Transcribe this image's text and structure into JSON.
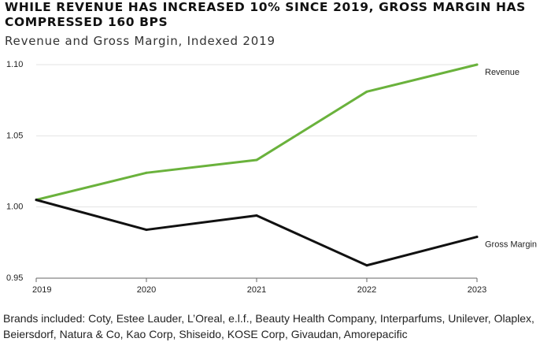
{
  "headline": "WHILE REVENUE HAS INCREASED 10% SINCE 2019, GROSS MARGIN HAS COMPRESSED 160 BPS",
  "footnote": "Brands included: Coty, Estee Lauder, L’Oreal, e.l.f., Beauty Health Company, Interparfums, Unilever, Olaplex, Beiersdorf, Natura & Co, Kao Corp, Shiseido, KOSE Corp, Givaudan, Amorepacific",
  "colors": {
    "revenue": "#6ab23c",
    "gross_margin": "#111111",
    "grid": "#e3e3e3",
    "axis": "#666666"
  },
  "chart_data": {
    "type": "line",
    "title": "Revenue and Gross Margin, Indexed 2019",
    "xlabel": "",
    "ylabel": "",
    "categories": [
      "2019",
      "2020",
      "2021",
      "2022",
      "2023"
    ],
    "ylim": [
      0.95,
      1.1
    ],
    "yticks": [
      0.95,
      1.0,
      1.05,
      1.1
    ],
    "ytick_labels": [
      "0.95",
      "1.00",
      "1.05",
      "1.10"
    ],
    "grid": true,
    "series": [
      {
        "name": "Revenue",
        "values": [
          1.005,
          1.024,
          1.033,
          1.081,
          1.1
        ],
        "color_key": "revenue"
      },
      {
        "name": "Gross Margin",
        "values": [
          1.005,
          0.984,
          0.994,
          0.959,
          0.979
        ],
        "color_key": "gross_margin"
      }
    ]
  }
}
